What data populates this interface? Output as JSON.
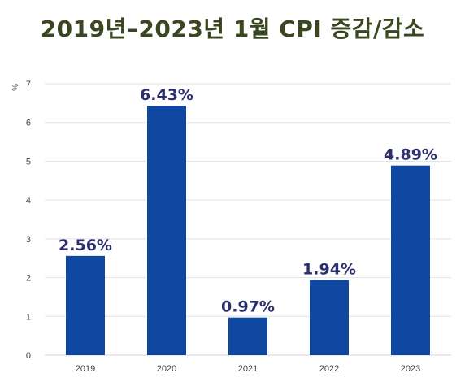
{
  "chart_data": {
    "type": "bar",
    "title": "2019년–2023년 1월 CPI 증감/감소",
    "ylabel": "%",
    "xlabel": "",
    "categories": [
      "2019",
      "2020",
      "2021",
      "2022",
      "2023"
    ],
    "values": [
      2.56,
      6.43,
      0.97,
      1.94,
      4.89
    ],
    "data_labels": [
      "2.56%",
      "6.43%",
      "0.97%",
      "1.94%",
      "4.89%"
    ],
    "ylim": [
      0,
      7
    ],
    "yticks": [
      "0",
      "1",
      "2",
      "3",
      "4",
      "5",
      "6",
      "7"
    ],
    "grid": true,
    "legend": "none",
    "bar_color": "#0f47a1",
    "label_color": "#2b2f6e",
    "title_color": "#3a4620"
  }
}
